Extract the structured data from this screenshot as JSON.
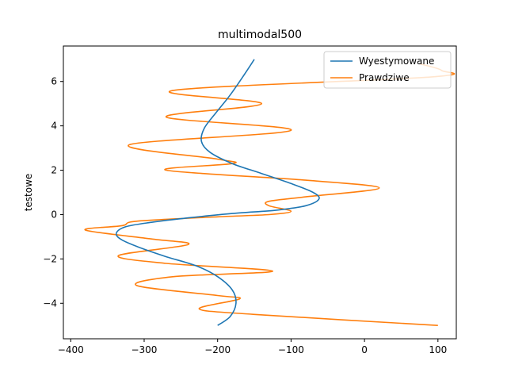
{
  "chart_data": {
    "type": "line",
    "title": "multimodal500",
    "xlabel": "",
    "ylabel": "testowe",
    "xlim": [
      -410,
      125
    ],
    "ylim": [
      -5.6,
      7.6
    ],
    "xticks": [
      -400,
      -300,
      -200,
      -100,
      0,
      100
    ],
    "yticks": [
      -4,
      -2,
      0,
      2,
      4,
      6
    ],
    "xtick_labels": [
      "−400",
      "−300",
      "−200",
      "−100",
      "0",
      "100"
    ],
    "ytick_labels": [
      "−4",
      "−2",
      "0",
      "2",
      "4",
      "6"
    ],
    "grid": false,
    "legend_position": "upper right",
    "series": [
      {
        "name": "Wyestymowane",
        "color": "#1f77b4",
        "points": [
          [
            -200,
            -5.0
          ],
          [
            -183,
            -4.6
          ],
          [
            -175,
            -4.0
          ],
          [
            -180,
            -3.4
          ],
          [
            -200,
            -2.8
          ],
          [
            -230,
            -2.3
          ],
          [
            -270,
            -1.9
          ],
          [
            -305,
            -1.5
          ],
          [
            -330,
            -1.15
          ],
          [
            -338,
            -0.85
          ],
          [
            -325,
            -0.55
          ],
          [
            -290,
            -0.35
          ],
          [
            -240,
            -0.15
          ],
          [
            -180,
            0.05
          ],
          [
            -120,
            0.2
          ],
          [
            -80,
            0.4
          ],
          [
            -62,
            0.7
          ],
          [
            -70,
            1.0
          ],
          [
            -100,
            1.4
          ],
          [
            -140,
            1.85
          ],
          [
            -180,
            2.3
          ],
          [
            -210,
            2.8
          ],
          [
            -222,
            3.3
          ],
          [
            -218,
            3.9
          ],
          [
            -202,
            4.6
          ],
          [
            -185,
            5.3
          ],
          [
            -168,
            6.1
          ],
          [
            -150,
            7.0
          ]
        ]
      },
      {
        "name": "Prawdziwe",
        "color": "#ff7f0e",
        "points": [
          [
            100,
            -5.0
          ],
          [
            -150,
            -4.5
          ],
          [
            -225,
            -4.25
          ],
          [
            -170,
            -3.8
          ],
          [
            -200,
            -3.65
          ],
          [
            -310,
            -3.2
          ],
          [
            -260,
            -2.8
          ],
          [
            -125,
            -2.55
          ],
          [
            -270,
            -2.2
          ],
          [
            -335,
            -1.85
          ],
          [
            -240,
            -1.35
          ],
          [
            -290,
            -1.1
          ],
          [
            -380,
            -0.7
          ],
          [
            -330,
            -0.5
          ],
          [
            -310,
            -0.3
          ],
          [
            -200,
            -0.1
          ],
          [
            -130,
            0.0
          ],
          [
            -100,
            0.15
          ],
          [
            -130,
            0.4
          ],
          [
            -130,
            0.6
          ],
          [
            -80,
            0.8
          ],
          [
            20,
            1.2
          ],
          [
            -80,
            1.55
          ],
          [
            -270,
            2.0
          ],
          [
            -180,
            2.3
          ],
          [
            -200,
            2.5
          ],
          [
            -320,
            3.15
          ],
          [
            -100,
            3.8
          ],
          [
            -270,
            4.4
          ],
          [
            -140,
            5.0
          ],
          [
            -260,
            5.6
          ],
          [
            90,
            6.2
          ],
          [
            105,
            6.5
          ],
          [
            75,
            6.8
          ]
        ]
      }
    ]
  }
}
